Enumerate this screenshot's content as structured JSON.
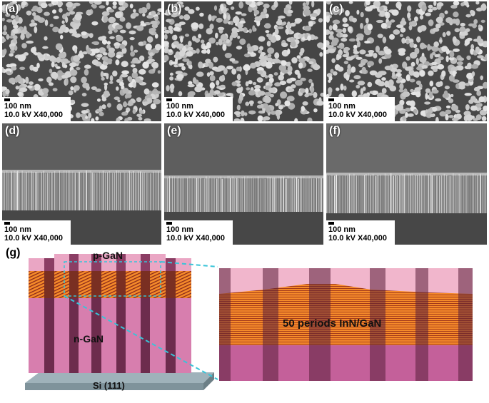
{
  "panels": [
    {
      "label": "(a)",
      "scale": "100 nm",
      "conditions": "10.0 kV X40,000"
    },
    {
      "label": "(b)",
      "scale": "100 nm",
      "conditions": "10.0 kV X40,000"
    },
    {
      "label": "(c)",
      "scale": "100 nm",
      "conditions": "10.0 kV X40,000"
    },
    {
      "label": "(d)",
      "scale": "100 nm",
      "conditions": "10.0 kV X40,000"
    },
    {
      "label": "(e)",
      "scale": "100 nm",
      "conditions": "10.0 kV X40,000"
    },
    {
      "label": "(f)",
      "scale": "100 nm",
      "conditions": "10.0 kV X40,000"
    }
  ],
  "schematic": {
    "label": "(g)",
    "top_layer": "p-GaN",
    "bottom_layer": "n-GaN",
    "substrate": "Si (111)",
    "mqw": "50 periods InN/GaN"
  },
  "colors": {
    "pink": "#e8a3c0",
    "dark_pink": "#7a3357",
    "orange": "#f07a20",
    "substrate": "#8fa4ad",
    "cyan_dash": "#38c4d8"
  }
}
